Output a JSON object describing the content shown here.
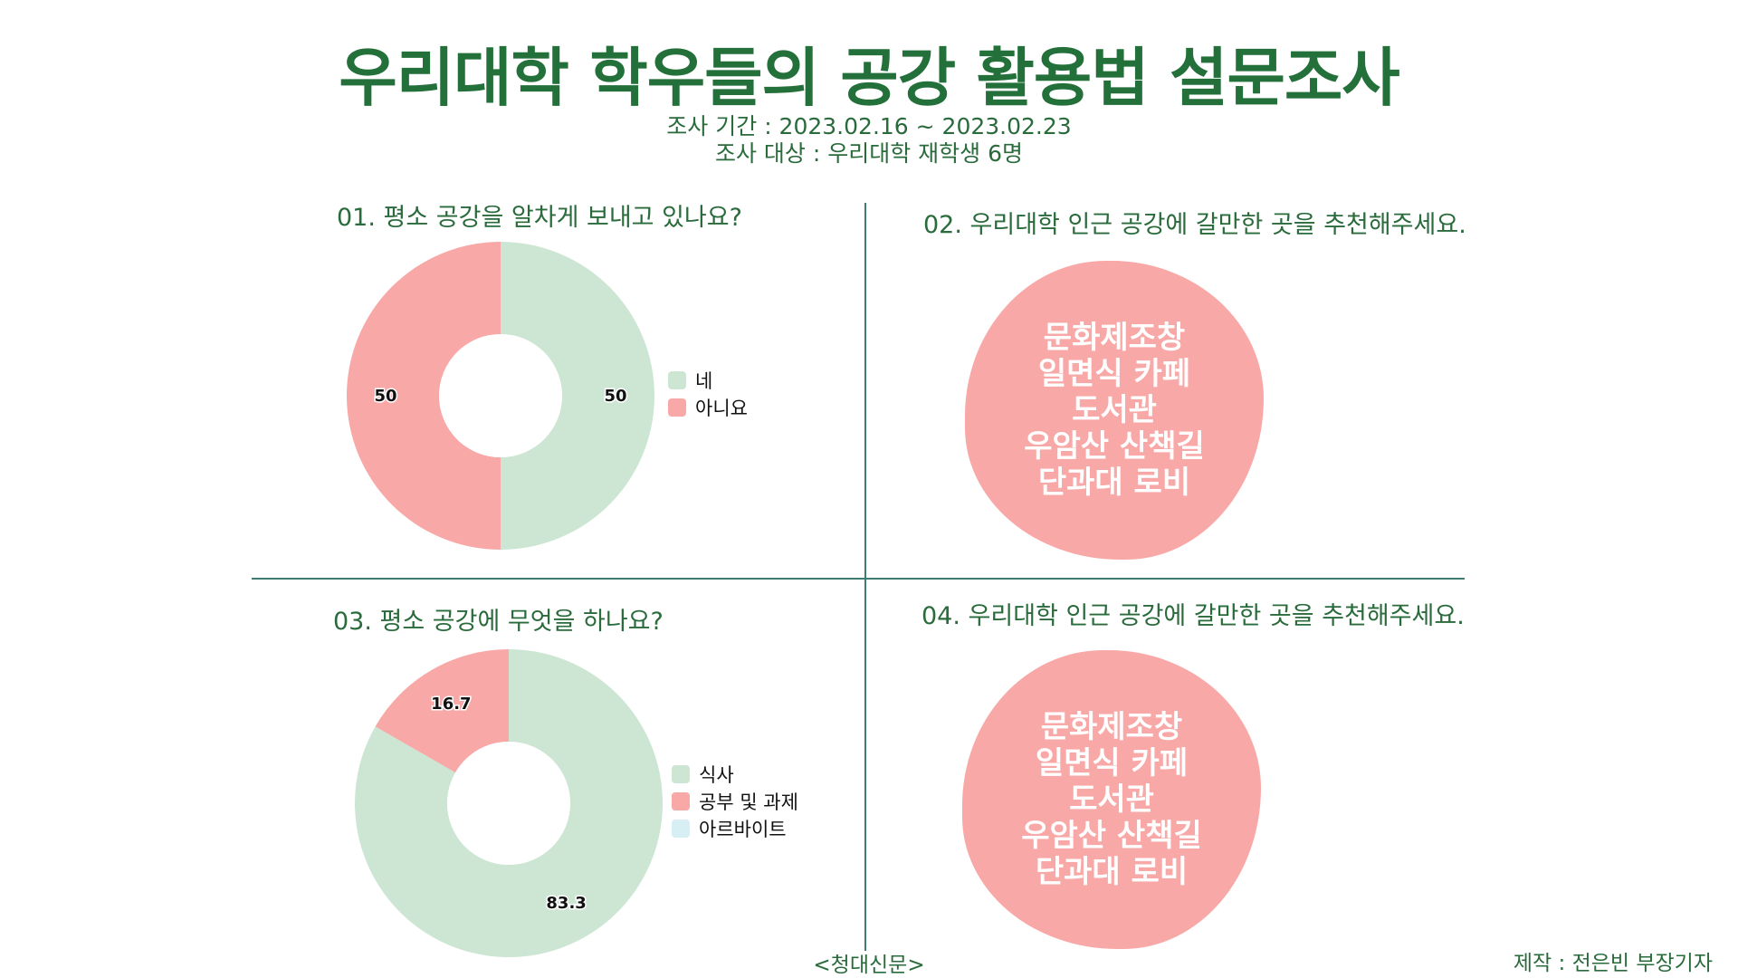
{
  "header": {
    "title": "우리대학 학우들의 공강 활용법 설문조사",
    "period": "조사 기간 : 2023.02.16 ~ 2023.02.23",
    "target": "조사 대상 : 우리대학 재학생 6명"
  },
  "colors": {
    "green": "#cde6d4",
    "red": "#f8a8a6",
    "blue": "#d6eef4",
    "title": "#23703a",
    "divider": "#3f7d73"
  },
  "q1": {
    "question": "01. 평소 공강을 알차게 보내고 있나요?"
  },
  "q2": {
    "question": "02. 우리대학 인근 공강에 갈만한 곳을 추천해주세요.",
    "answers": [
      "문화제조창",
      "일면식 카페",
      "도서관",
      "우암산 산책길",
      "단과대 로비"
    ]
  },
  "q3": {
    "question": "03. 평소 공강에 무엇을 하나요?"
  },
  "q4": {
    "question": "04. 우리대학 인근 공강에 갈만한 곳을 추천해주세요.",
    "answers": [
      "문화제조창",
      "일면식 카페",
      "도서관",
      "우암산 산책길",
      "단과대 로비"
    ]
  },
  "footer": {
    "source": "<청대신문>",
    "credit": "제작 : 전은빈 부장기자"
  },
  "chart_data": [
    {
      "type": "pie",
      "title": "01. 평소 공강을 알차게 보내고 있나요?",
      "categories": [
        "네",
        "아니요"
      ],
      "values": [
        50,
        50
      ],
      "labels": [
        "50",
        "50"
      ],
      "colors": [
        "#cde6d4",
        "#f8a8a6"
      ],
      "legend": "right",
      "donut": true
    },
    {
      "type": "pie",
      "title": "03. 평소 공강에 무엇을 하나요?",
      "categories": [
        "식사",
        "공부 및 과제",
        "아르바이트"
      ],
      "values": [
        83.3,
        16.7,
        0
      ],
      "labels": [
        "83.3",
        "16.7",
        ""
      ],
      "colors": [
        "#cde6d4",
        "#f8a8a6",
        "#d6eef4"
      ],
      "legend": "right",
      "donut": true
    }
  ]
}
